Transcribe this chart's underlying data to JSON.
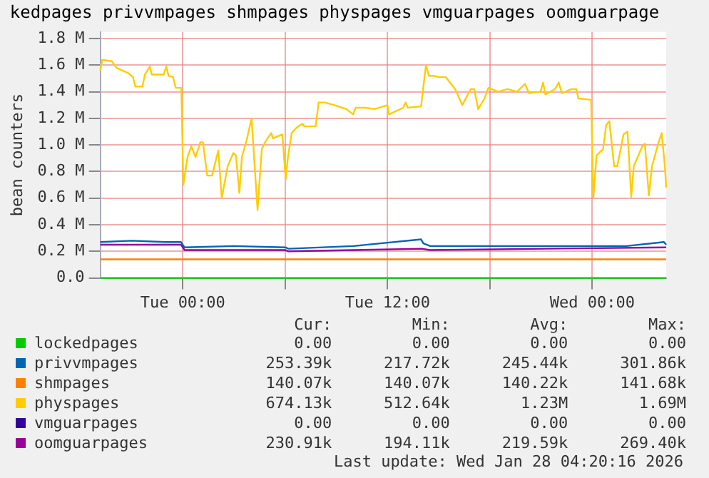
{
  "chart_data": {
    "type": "line",
    "title": "kedpages privvmpages shmpages physpages vmguarpages oomguarpage",
    "ylabel": "bean counters",
    "xlim": [
      "2026-01-26T19:10",
      "2026-01-28T04:20"
    ],
    "xticks": [
      {
        "value": "2026-01-27T00:00",
        "label": "Tue 00:00"
      },
      {
        "value": "2026-01-27T06:00",
        "label": null
      },
      {
        "value": "2026-01-27T12:00",
        "label": "Tue 12:00"
      },
      {
        "value": "2026-01-27T18:00",
        "label": null
      },
      {
        "value": "2026-01-28T00:00",
        "label": "Wed 00:00"
      }
    ],
    "ylim": [
      0,
      1.85
    ],
    "yticks": [
      {
        "value": 0,
        "label": "0.0"
      },
      {
        "value": 0.2,
        "label": "0.2 M"
      },
      {
        "value": 0.4,
        "label": "0.4 M"
      },
      {
        "value": 0.6,
        "label": "0.6 M"
      },
      {
        "value": 0.8,
        "label": "0.8 M"
      },
      {
        "value": 1.0,
        "label": "1.0 M"
      },
      {
        "value": 1.2,
        "label": "1.2 M"
      },
      {
        "value": 1.4,
        "label": "1.4 M"
      },
      {
        "value": 1.6,
        "label": "1.6 M"
      },
      {
        "value": 1.8,
        "label": "1.8 M"
      }
    ],
    "grid": true,
    "legend": "bottom",
    "marker": "none",
    "line_style": "solid",
    "series": [
      {
        "name": "lockedpages",
        "color": "#00cc00",
        "x": [
          "2026-01-26T19:10",
          "2026-01-28T04:20"
        ],
        "values": [
          0,
          0
        ]
      },
      {
        "name": "privvmpages",
        "color": "#0066b3",
        "x": [
          "2026-01-26T19:10",
          "2026-01-26T21:00",
          "2026-01-26T23:00",
          "2026-01-26T23:54",
          "2026-01-27T00:06",
          "2026-01-27T03:00",
          "2026-01-27T06:00",
          "2026-01-27T06:12",
          "2026-01-27T10:00",
          "2026-01-27T13:58",
          "2026-01-27T14:06",
          "2026-01-27T14:30",
          "2026-01-27T20:00",
          "2026-01-28T00:00",
          "2026-01-28T02:00",
          "2026-01-28T04:12",
          "2026-01-28T04:20"
        ],
        "values": [
          0.27,
          0.28,
          0.27,
          0.27,
          0.23,
          0.24,
          0.23,
          0.22,
          0.24,
          0.29,
          0.26,
          0.24,
          0.24,
          0.24,
          0.24,
          0.27,
          0.25
        ]
      },
      {
        "name": "shmpages",
        "color": "#ff8000",
        "x": [
          "2026-01-26T19:10",
          "2026-01-28T04:20"
        ],
        "values": [
          0.14,
          0.14
        ]
      },
      {
        "name": "physpages",
        "color": "#ffcc00",
        "x": [
          "2026-01-26T19:10",
          "2026-01-26T19:17",
          "2026-01-26T19:50",
          "2026-01-26T20:07",
          "2026-01-26T20:49",
          "2026-01-26T21:05",
          "2026-01-26T21:13",
          "2026-01-26T21:38",
          "2026-01-26T21:47",
          "2026-01-26T22:04",
          "2026-01-26T22:11",
          "2026-01-26T22:53",
          "2026-01-26T23:02",
          "2026-01-26T23:10",
          "2026-01-26T23:26",
          "2026-01-26T23:35",
          "2026-01-26T23:55",
          "2026-01-27T00:02",
          "2026-01-27T00:17",
          "2026-01-27T00:30",
          "2026-01-27T00:45",
          "2026-01-27T01:02",
          "2026-01-27T01:11",
          "2026-01-27T01:26",
          "2026-01-27T01:43",
          "2026-01-27T02:05",
          "2026-01-27T02:17",
          "2026-01-27T02:38",
          "2026-01-27T02:58",
          "2026-01-27T03:07",
          "2026-01-27T03:19",
          "2026-01-27T03:28",
          "2026-01-27T03:45",
          "2026-01-27T04:02",
          "2026-01-27T04:23",
          "2026-01-27T04:38",
          "2026-01-27T04:52",
          "2026-01-27T05:11",
          "2026-01-27T05:17",
          "2026-01-27T05:50",
          "2026-01-27T06:02",
          "2026-01-27T06:10",
          "2026-01-27T06:23",
          "2026-01-27T06:40",
          "2026-01-27T07:00",
          "2026-01-27T07:08",
          "2026-01-27T07:47",
          "2026-01-27T07:58",
          "2026-01-27T08:20",
          "2026-01-27T08:53",
          "2026-01-27T09:35",
          "2026-01-27T09:59",
          "2026-01-27T10:08",
          "2026-01-27T10:41",
          "2026-01-27T11:15",
          "2026-01-27T12:00",
          "2026-01-27T12:05",
          "2026-01-27T12:55",
          "2026-01-27T13:04",
          "2026-01-27T13:11",
          "2026-01-27T13:58",
          "2026-01-27T14:15",
          "2026-01-27T14:26",
          "2026-01-27T14:43",
          "2026-01-27T15:00",
          "2026-01-27T15:25",
          "2026-01-27T15:58",
          "2026-01-27T16:23",
          "2026-01-27T16:52",
          "2026-01-27T17:05",
          "2026-01-27T17:19",
          "2026-01-27T17:41",
          "2026-01-27T17:55",
          "2026-01-27T18:28",
          "2026-01-27T19:02",
          "2026-01-27T19:35",
          "2026-01-27T20:04",
          "2026-01-27T20:17",
          "2026-01-27T20:58",
          "2026-01-27T21:07",
          "2026-01-27T21:15",
          "2026-01-27T21:49",
          "2026-01-27T22:02",
          "2026-01-27T22:13",
          "2026-01-27T22:47",
          "2026-01-27T23:04",
          "2026-01-27T23:11",
          "2026-01-27T23:56",
          "2026-01-28T00:04",
          "2026-01-28T00:15",
          "2026-01-28T00:38",
          "2026-01-28T00:49",
          "2026-01-28T01:00",
          "2026-01-28T01:17",
          "2026-01-28T01:28",
          "2026-01-28T01:50",
          "2026-01-28T02:04",
          "2026-01-28T02:17",
          "2026-01-28T02:26",
          "2026-01-28T02:56",
          "2026-01-28T03:05",
          "2026-01-28T03:19",
          "2026-01-28T03:30",
          "2026-01-28T03:52",
          "2026-01-28T04:04",
          "2026-01-28T04:15",
          "2026-01-28T04:20"
        ],
        "values": [
          1.56,
          1.64,
          1.63,
          1.58,
          1.54,
          1.51,
          1.44,
          1.44,
          1.53,
          1.59,
          1.53,
          1.53,
          1.59,
          1.52,
          1.51,
          1.43,
          1.43,
          0.7,
          0.91,
          0.99,
          0.91,
          1.02,
          1.02,
          0.77,
          0.77,
          0.96,
          0.6,
          0.84,
          0.94,
          0.92,
          0.64,
          0.91,
          1.04,
          1.2,
          0.51,
          0.97,
          1.03,
          1.09,
          1.05,
          1.08,
          0.74,
          0.91,
          1.09,
          1.13,
          1.16,
          1.14,
          1.14,
          1.32,
          1.32,
          1.3,
          1.27,
          1.23,
          1.28,
          1.28,
          1.27,
          1.3,
          1.23,
          1.28,
          1.32,
          1.28,
          1.29,
          1.6,
          1.52,
          1.52,
          1.51,
          1.51,
          1.42,
          1.3,
          1.42,
          1.42,
          1.27,
          1.35,
          1.43,
          1.4,
          1.42,
          1.4,
          1.46,
          1.39,
          1.4,
          1.47,
          1.38,
          1.42,
          1.47,
          1.39,
          1.42,
          1.42,
          1.35,
          1.34,
          0.6,
          0.92,
          0.97,
          1.15,
          1.18,
          0.84,
          0.84,
          1.08,
          1.1,
          0.61,
          0.84,
          0.99,
          1.01,
          0.62,
          0.84,
          1.01,
          1.09,
          0.85,
          0.68
        ]
      },
      {
        "name": "vmguarpages",
        "color": "#330099"
      },
      {
        "name": "oomguarpages",
        "color": "#990099",
        "x": [
          "2026-01-26T19:10",
          "2026-01-26T23:54",
          "2026-01-27T00:06",
          "2026-01-27T06:00",
          "2026-01-27T06:12",
          "2026-01-27T14:00",
          "2026-01-27T14:30",
          "2026-01-28T04:20"
        ],
        "values": [
          0.25,
          0.25,
          0.21,
          0.21,
          0.2,
          0.22,
          0.21,
          0.23
        ]
      }
    ],
    "annotations": [
      "Cur:",
      "Min:",
      "Avg:",
      "Max:",
      "0.00",
      "0.00",
      "0.00",
      "0.00",
      "253.39k",
      "217.72k",
      "245.44k",
      "301.86k",
      "140.07k",
      "140.07k",
      "140.22k",
      "141.68k",
      "674.13k",
      "512.64k",
      "1.23M",
      "1.69M",
      "0.00",
      "0.00",
      "0.00",
      "0.00",
      "230.91k",
      "194.11k",
      "219.59k",
      "269.40k",
      "Last update: Wed Jan 28 04:20:16 2026"
    ]
  }
}
